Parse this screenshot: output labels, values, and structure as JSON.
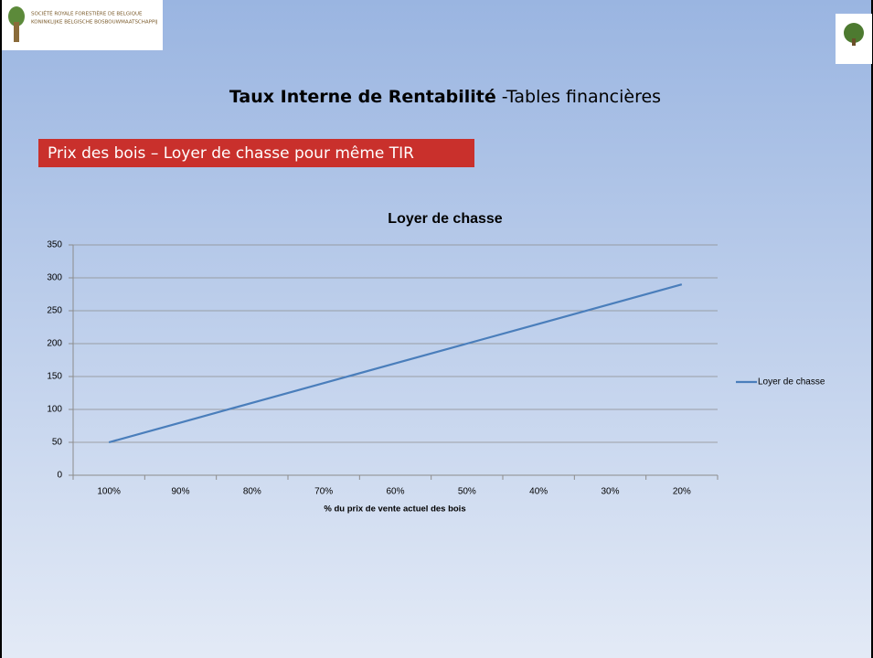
{
  "header": {
    "org_fr": "Société Royale Forestière de Belgique",
    "org_nl": "Koninklijke Belgische Bosbouwmaatschappij"
  },
  "title": {
    "bold": "Taux Interne de Rentabilité",
    "rest": " -Tables financières"
  },
  "subtitle": "Prix des bois – Loyer de chasse pour même TIR",
  "chart_data": {
    "type": "line",
    "title": "Loyer de chasse",
    "x_label": "% du prix de vente actuel des bois",
    "categories": [
      "100%",
      "90%",
      "80%",
      "70%",
      "60%",
      "50%",
      "40%",
      "30%",
      "20%"
    ],
    "series": [
      {
        "name": "Loyer de chasse",
        "color": "#4a7ebb",
        "values": [
          50,
          80,
          110,
          140,
          170,
          200,
          230,
          260,
          290
        ]
      }
    ],
    "ylim": [
      0,
      350
    ],
    "yticks": [
      0,
      50,
      100,
      150,
      200,
      250,
      300,
      350
    ],
    "grid": true,
    "legend": "right"
  }
}
